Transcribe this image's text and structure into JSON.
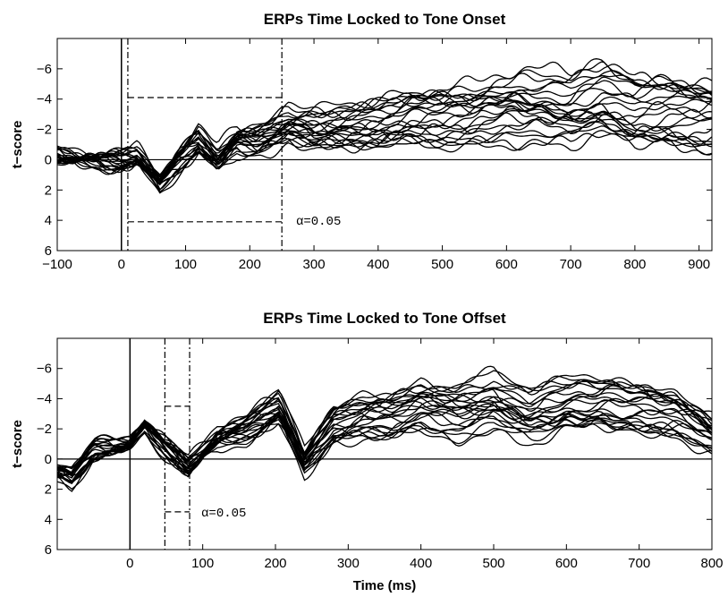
{
  "chart_data": [
    {
      "type": "line",
      "title": "ERPs Time Locked to Tone Onset",
      "xlabel": "",
      "ylabel": "t−score",
      "xlim": [
        -100,
        920
      ],
      "ylim": [
        6,
        -8
      ],
      "y_axis_reversed": true,
      "xticks": [
        -100,
        0,
        100,
        200,
        300,
        400,
        500,
        600,
        700,
        800,
        900
      ],
      "xtick_labels": [
        "−100",
        "0",
        "100",
        "200",
        "300",
        "400",
        "500",
        "600",
        "700",
        "800",
        "900"
      ],
      "yticks": [
        -6,
        -4,
        -2,
        0,
        2,
        4,
        6
      ],
      "ytick_labels": [
        "−6",
        "−4",
        "−2",
        "0",
        "2",
        "4",
        "6"
      ],
      "grid": false,
      "legend": "none",
      "line_color": "#000000",
      "series_count": 24,
      "series_spread": 0.85,
      "envelope": {
        "x": [
          -100,
          -50,
          0,
          25,
          60,
          90,
          120,
          150,
          180,
          210,
          240,
          260,
          300,
          350,
          400,
          450,
          500,
          550,
          600,
          650,
          700,
          750,
          800,
          850,
          920
        ],
        "mean": [
          -0.2,
          0.0,
          0.1,
          -0.2,
          1.5,
          0.0,
          -1.2,
          0.0,
          -1.3,
          -1.2,
          -1.8,
          -2.2,
          -1.9,
          -2.1,
          -2.3,
          -2.9,
          -2.9,
          -3.1,
          -3.5,
          -3.4,
          -3.1,
          -3.8,
          -3.0,
          -3.2,
          -3.0
        ],
        "spread": [
          0.6,
          0.6,
          0.6,
          0.7,
          0.8,
          0.8,
          0.9,
          0.9,
          1.0,
          1.1,
          1.2,
          1.3,
          1.6,
          1.8,
          1.9,
          2.2,
          2.3,
          2.4,
          2.6,
          2.7,
          2.8,
          2.9,
          2.9,
          2.9,
          2.9
        ]
      },
      "reference_lines": {
        "zero_line_y": 0,
        "onset_line_x": 0
      },
      "annotations": {
        "window_x": [
          10,
          250
        ],
        "threshold_y": [
          -4.1,
          4.1
        ],
        "alpha_text": "α=0.05",
        "alpha_pos": [
          272,
          4.0
        ]
      }
    },
    {
      "type": "line",
      "title": "ERPs Time Locked to Tone Offset",
      "xlabel": "Time (ms)",
      "ylabel": "t−score",
      "xlim": [
        -100,
        800
      ],
      "ylim": [
        6,
        -8
      ],
      "y_axis_reversed": true,
      "xticks": [
        0,
        100,
        200,
        300,
        400,
        500,
        600,
        700,
        800
      ],
      "xtick_labels": [
        "0",
        "100",
        "200",
        "300",
        "400",
        "500",
        "600",
        "700",
        "800"
      ],
      "yticks": [
        -6,
        -4,
        -2,
        0,
        2,
        4,
        6
      ],
      "ytick_labels": [
        "−6",
        "−4",
        "−2",
        "0",
        "2",
        "4",
        "6"
      ],
      "grid": false,
      "legend": "none",
      "line_color": "#000000",
      "series_count": 24,
      "series_spread": 0.85,
      "envelope": {
        "x": [
          -100,
          -80,
          -50,
          -20,
          0,
          20,
          50,
          80,
          120,
          160,
          205,
          240,
          280,
          320,
          360,
          400,
          450,
          500,
          550,
          600,
          650,
          700,
          750,
          800
        ],
        "mean": [
          0.8,
          1.2,
          -0.6,
          -0.8,
          -1.0,
          -2.2,
          -0.7,
          0.5,
          -1.4,
          -2.0,
          -3.4,
          0.2,
          -2.2,
          -2.8,
          -2.9,
          -3.6,
          -3.2,
          -3.8,
          -2.8,
          -3.5,
          -3.6,
          -3.4,
          -3.1,
          -1.7
        ],
        "spread": [
          0.7,
          0.7,
          0.6,
          0.6,
          0.6,
          0.7,
          0.6,
          0.6,
          0.8,
          1.0,
          1.2,
          1.0,
          1.5,
          1.7,
          1.8,
          2.0,
          2.1,
          2.2,
          2.0,
          2.1,
          2.1,
          2.0,
          1.9,
          1.5
        ]
      },
      "reference_lines": {
        "zero_line_y": 0,
        "onset_line_x": 0
      },
      "annotations": {
        "window_x": [
          48,
          82
        ],
        "threshold_y": [
          -3.5,
          3.5
        ],
        "alpha_text": "α=0.05",
        "alpha_pos": [
          98,
          3.5
        ]
      }
    }
  ]
}
